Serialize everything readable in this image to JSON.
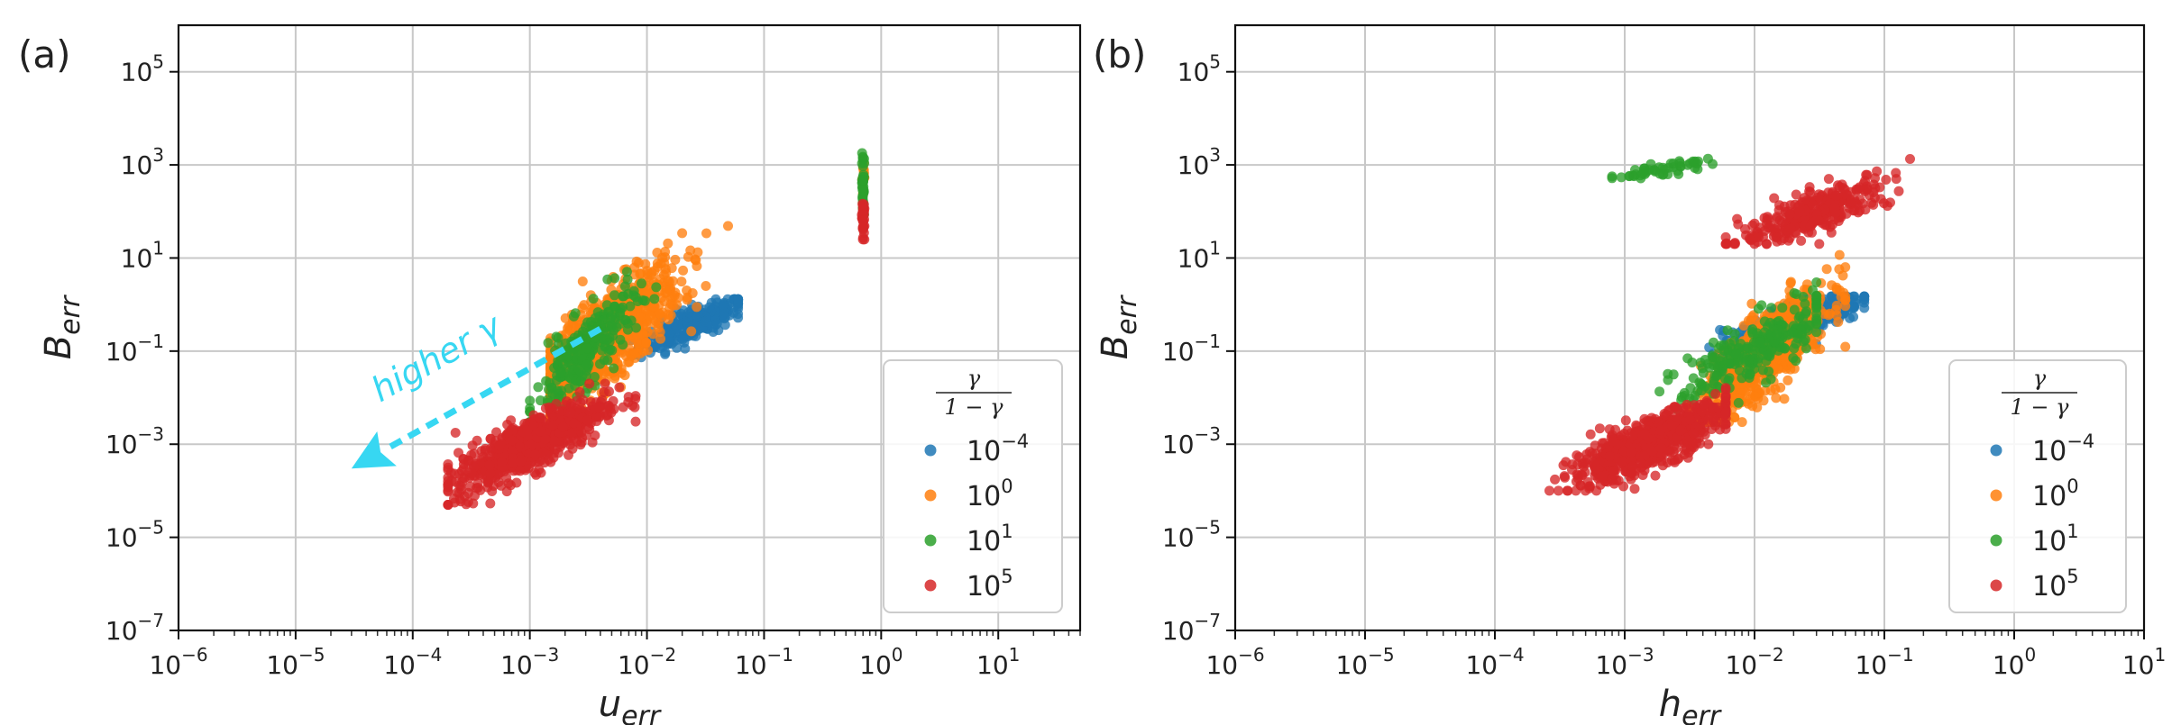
{
  "chart_data": [
    {
      "panel": "(a)",
      "type": "scatter",
      "scale": {
        "x": "log",
        "y": "log"
      },
      "xlim": [
        1e-06,
        50
      ],
      "ylim": [
        1e-07,
        1000000.0
      ],
      "x_ticks": [
        {
          "b": "10",
          "e": "−6"
        },
        {
          "b": "10",
          "e": "−5"
        },
        {
          "b": "10",
          "e": "−4"
        },
        {
          "b": "10",
          "e": "−3"
        },
        {
          "b": "10",
          "e": "−2"
        },
        {
          "b": "10",
          "e": "−1"
        },
        {
          "b": "10",
          "e": "0"
        },
        {
          "b": "10",
          "e": "1"
        }
      ],
      "y_ticks": [
        {
          "b": "10",
          "e": "−7"
        },
        {
          "b": "10",
          "e": "−5"
        },
        {
          "b": "10",
          "e": "−3"
        },
        {
          "b": "10",
          "e": "−1"
        },
        {
          "b": "10",
          "e": "1"
        },
        {
          "b": "10",
          "e": "3"
        },
        {
          "b": "10",
          "e": "5"
        }
      ],
      "xlabel": {
        "base": "u",
        "sub": "err"
      },
      "ylabel": {
        "base": "B",
        "sub": "err"
      },
      "grid": true,
      "legend": {
        "placement": "lower-right",
        "title": "γ / (1 − γ)",
        "entries": [
          {
            "b": "10",
            "e": "−4"
          },
          {
            "b": "10",
            "e": "0"
          },
          {
            "b": "10",
            "e": "1"
          },
          {
            "b": "10",
            "e": "5"
          }
        ]
      },
      "annotation": {
        "text": "higher γ",
        "arrow_from": [
          0.004,
          0.3
        ],
        "arrow_to": [
          3e-05,
          0.0003
        ],
        "color": "#37d7f2"
      },
      "series": [
        {
          "legend_label": "10^-4",
          "color": "#1f77b4",
          "clusters": [
            {
              "x_range": [
                0.004,
                0.06
              ],
              "y_range": [
                0.03,
                1.3
              ],
              "x_center": 0.025,
              "y_center": 0.4,
              "n": 260
            }
          ]
        },
        {
          "legend_label": "10^0",
          "color": "#ff7f0e",
          "clusters": [
            {
              "x_range": [
                0.0015,
                0.08
              ],
              "y_range": [
                0.003,
                90
              ],
              "x_center": 0.004,
              "y_center": 0.15,
              "n": 900
            },
            {
              "x_range": [
                0.68,
                0.72
              ],
              "y_range": [
                200,
                1500
              ],
              "x_center": 0.7,
              "y_center": 600,
              "n": 15
            }
          ]
        },
        {
          "legend_label": "10^1",
          "color": "#2ca02c",
          "clusters": [
            {
              "x_range": [
                0.001,
                0.012
              ],
              "y_range": [
                0.003,
                8
              ],
              "x_center": 0.003,
              "y_center": 0.1,
              "n": 250
            },
            {
              "x_range": [
                0.68,
                0.72
              ],
              "y_range": [
                30,
                2000
              ],
              "x_center": 0.7,
              "y_center": 400,
              "n": 40
            }
          ]
        },
        {
          "legend_label": "10^5",
          "color": "#d62728",
          "clusters": [
            {
              "x_range": [
                0.0002,
                0.008
              ],
              "y_range": [
                5e-05,
                0.02
              ],
              "x_center": 0.001,
              "y_center": 0.001,
              "n": 700
            },
            {
              "x_range": [
                0.68,
                0.72
              ],
              "y_range": [
                25,
                300
              ],
              "x_center": 0.7,
              "y_center": 80,
              "n": 40
            }
          ]
        }
      ]
    },
    {
      "panel": "(b)",
      "type": "scatter",
      "scale": {
        "x": "log",
        "y": "log"
      },
      "xlim": [
        1e-06,
        10
      ],
      "ylim": [
        1e-07,
        1000000.0
      ],
      "x_ticks": [
        {
          "b": "10",
          "e": "−6"
        },
        {
          "b": "10",
          "e": "−5"
        },
        {
          "b": "10",
          "e": "−4"
        },
        {
          "b": "10",
          "e": "−3"
        },
        {
          "b": "10",
          "e": "−2"
        },
        {
          "b": "10",
          "e": "−1"
        },
        {
          "b": "10",
          "e": "0"
        },
        {
          "b": "10",
          "e": "1"
        }
      ],
      "y_ticks": [
        {
          "b": "10",
          "e": "−7"
        },
        {
          "b": "10",
          "e": "−5"
        },
        {
          "b": "10",
          "e": "−3"
        },
        {
          "b": "10",
          "e": "−1"
        },
        {
          "b": "10",
          "e": "1"
        },
        {
          "b": "10",
          "e": "3"
        },
        {
          "b": "10",
          "e": "5"
        }
      ],
      "xlabel": {
        "base": "h",
        "sub": "err"
      },
      "ylabel": {
        "base": "B",
        "sub": "err"
      },
      "grid": true,
      "legend": {
        "placement": "lower-right",
        "title": "γ / (1 − γ)",
        "entries": [
          {
            "b": "10",
            "e": "−4"
          },
          {
            "b": "10",
            "e": "0"
          },
          {
            "b": "10",
            "e": "1"
          },
          {
            "b": "10",
            "e": "5"
          }
        ]
      },
      "series": [
        {
          "legend_label": "10^-4",
          "color": "#1f77b4",
          "clusters": [
            {
              "x_range": [
                0.003,
                0.07
              ],
              "y_range": [
                0.02,
                1.5
              ],
              "x_center": 0.02,
              "y_center": 0.4,
              "n": 350
            }
          ]
        },
        {
          "legend_label": "10^0",
          "color": "#ff7f0e",
          "clusters": [
            {
              "x_range": [
                0.003,
                0.05
              ],
              "y_range": [
                0.003,
                15
              ],
              "x_center": 0.012,
              "y_center": 0.08,
              "n": 700
            }
          ]
        },
        {
          "legend_label": "10^1",
          "color": "#2ca02c",
          "clusters": [
            {
              "x_range": [
                0.001,
                0.03
              ],
              "y_range": [
                0.003,
                3
              ],
              "x_center": 0.01,
              "y_center": 0.1,
              "n": 250
            },
            {
              "x_range": [
                0.0008,
                0.008
              ],
              "y_range": [
                400,
                1500
              ],
              "x_center": 0.002,
              "y_center": 800,
              "n": 50
            }
          ]
        },
        {
          "legend_label": "10^5",
          "color": "#d62728",
          "clusters": [
            {
              "x_range": [
                0.0002,
                0.006
              ],
              "y_range": [
                0.0001,
                0.02
              ],
              "x_center": 0.0015,
              "y_center": 0.001,
              "n": 700
            },
            {
              "x_range": [
                0.006,
                0.17
              ],
              "y_range": [
                20,
                2000
              ],
              "x_center": 0.03,
              "y_center": 100,
              "n": 320
            }
          ]
        }
      ]
    }
  ]
}
